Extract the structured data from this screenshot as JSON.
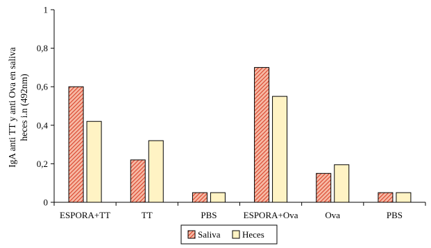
{
  "chart_data": {
    "type": "bar",
    "ylabel_lines": [
      "IgA anti TT y anti Ova en saliva",
      "heces i.n (492nm)"
    ],
    "xlabel": "",
    "ylim": [
      0,
      1
    ],
    "yticks": [
      0,
      0.2,
      0.4,
      0.6,
      0.8,
      1
    ],
    "ytick_labels": [
      "0",
      "0,2",
      "0,4",
      "0,6",
      "0,8",
      "1"
    ],
    "categories": [
      "ESPORA+TT",
      "TT",
      "PBS",
      "ESPORA+Ova",
      "Ova",
      "PBS"
    ],
    "series": [
      {
        "name": "Saliva",
        "values": [
          0.6,
          0.22,
          0.05,
          0.7,
          0.15,
          0.05
        ],
        "color": "#f08a6a",
        "pattern": "diagonal-hatch"
      },
      {
        "name": "Heces",
        "values": [
          0.42,
          0.32,
          0.05,
          0.55,
          0.195,
          0.05
        ],
        "color": "#fff3c4",
        "pattern": "solid"
      }
    ],
    "grid": false,
    "legend_position": "bottom-center"
  }
}
